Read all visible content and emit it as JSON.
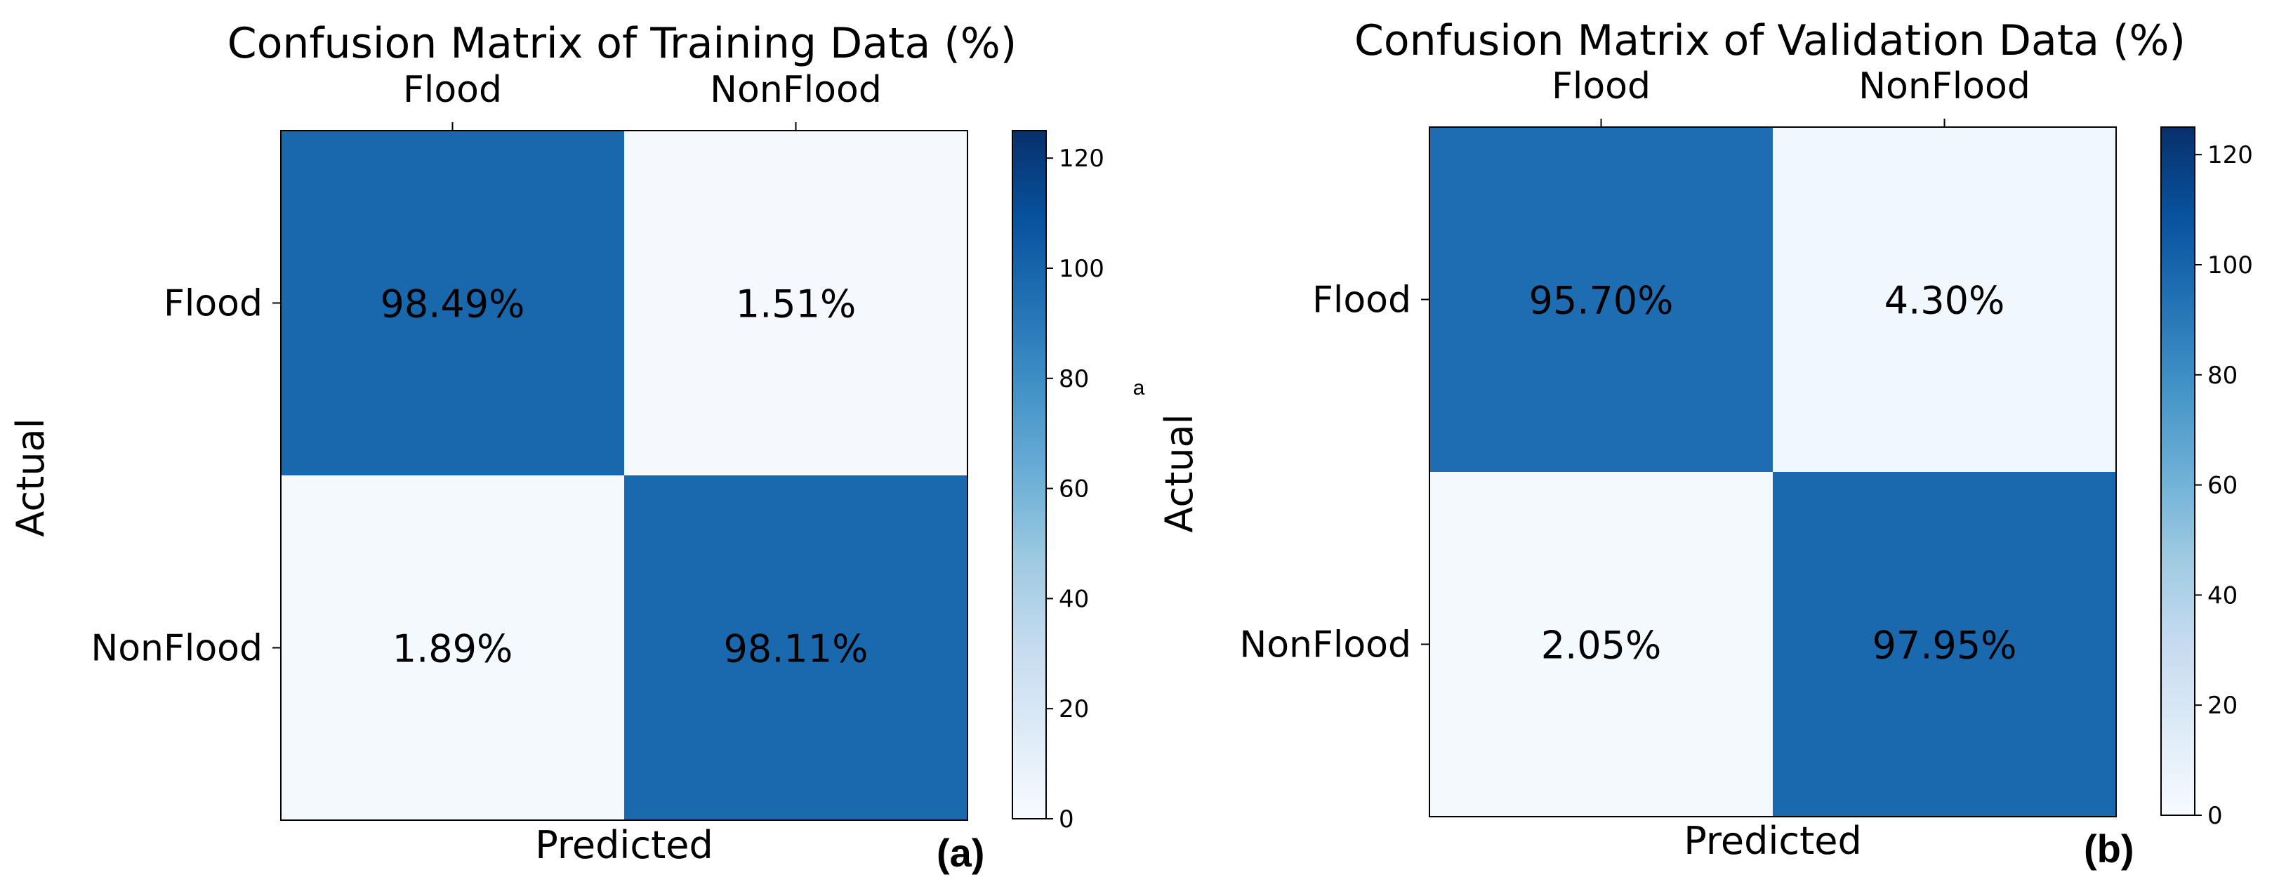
{
  "stray_mark": "a",
  "chart_data": [
    {
      "type": "heatmap",
      "title": "Confusion Matrix of Training Data (%)",
      "xlabel": "Predicted",
      "ylabel": "Actual",
      "x_categories": [
        "Flood",
        "NonFlood"
      ],
      "y_categories": [
        "Flood",
        "NonFlood"
      ],
      "values": [
        [
          98.49,
          1.51
        ],
        [
          1.89,
          98.11
        ]
      ],
      "cell_labels": [
        [
          "98.49%",
          "1.51%"
        ],
        [
          "1.89%",
          "98.11%"
        ]
      ],
      "colorbar": {
        "range": [
          0,
          125
        ],
        "ticks": [
          0,
          20,
          40,
          60,
          80,
          100,
          120
        ],
        "tick_labels": [
          "0",
          "20",
          "40",
          "60",
          "80",
          "100",
          "120"
        ],
        "colormap": "Blues"
      },
      "panel_label": "(a)"
    },
    {
      "type": "heatmap",
      "title": "Confusion Matrix of Validation Data (%)",
      "xlabel": "Predicted",
      "ylabel": "Actual",
      "x_categories": [
        "Flood",
        "NonFlood"
      ],
      "y_categories": [
        "Flood",
        "NonFlood"
      ],
      "values": [
        [
          95.7,
          4.3
        ],
        [
          2.05,
          97.95
        ]
      ],
      "cell_labels": [
        [
          "95.70%",
          "4.30%"
        ],
        [
          "2.05%",
          "97.95%"
        ]
      ],
      "colorbar": {
        "range": [
          0,
          125
        ],
        "ticks": [
          0,
          20,
          40,
          60,
          80,
          100,
          120
        ],
        "tick_labels": [
          "0",
          "20",
          "40",
          "60",
          "80",
          "100",
          "120"
        ],
        "colormap": "Blues"
      },
      "panel_label": "(b)"
    }
  ]
}
